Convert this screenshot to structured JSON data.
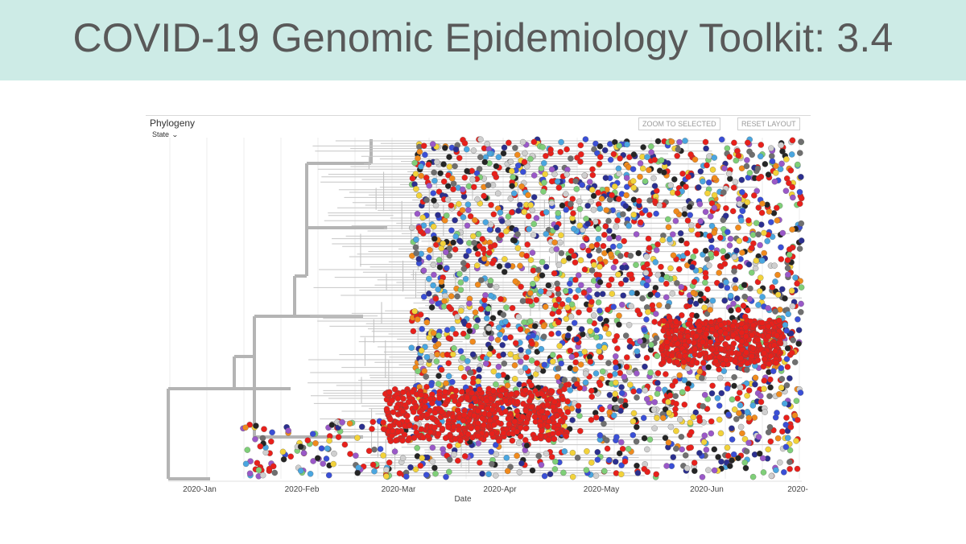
{
  "slide": {
    "title": "COVID-19 Genomic Epidemiology Toolkit: 3.4"
  },
  "panel": {
    "title": "Phylogeny",
    "color_by": "State",
    "buttons": {
      "zoom": "ZOOM TO SELECTED",
      "reset": "RESET LAYOUT"
    }
  },
  "axis": {
    "label": "Date",
    "ticks": [
      "2020-Jan",
      "2020-Feb",
      "2020-Mar",
      "2020-Apr",
      "2020-May",
      "2020-Jun",
      "2020-"
    ]
  },
  "colors": {
    "title_bg": "#cdebe6",
    "branch": "#b4b4b4",
    "tips": [
      "#e8201b",
      "#e8201b",
      "#e8201b",
      "#3a4fd6",
      "#6f6f6f",
      "#cfcfcf",
      "#f08a1c",
      "#f2d23a",
      "#7fcf78",
      "#9a58c8",
      "#252525",
      "#4aa6e0",
      "#2b2f8f"
    ]
  }
}
